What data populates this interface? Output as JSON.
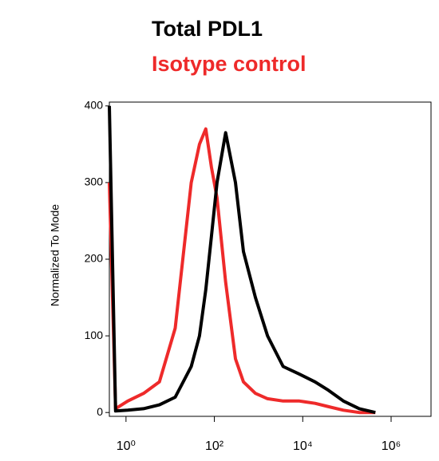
{
  "chart_data": {
    "type": "line",
    "y_label": "Normalized To Mode",
    "x": [
      0.42,
      0.58,
      1.1,
      2.5,
      5.7,
      13,
      30,
      46,
      64,
      86,
      115,
      180,
      300,
      455,
      850,
      1600,
      3600,
      8400,
      19000,
      36000,
      83000,
      190000,
      440000
    ],
    "series": [
      {
        "name": "Total PDL1",
        "color": "#000000",
        "values": [
          400,
          2,
          3,
          5,
          10,
          20,
          60,
          100,
          160,
          230,
          300,
          365,
          300,
          210,
          150,
          100,
          60,
          50,
          40,
          30,
          15,
          5,
          0
        ]
      },
      {
        "name": "Isotype control",
        "color": "#ee2a2a",
        "values": [
          300,
          5,
          15,
          25,
          40,
          110,
          300,
          350,
          370,
          320,
          280,
          170,
          70,
          40,
          25,
          18,
          15,
          15,
          12,
          8,
          3,
          0,
          0
        ]
      }
    ],
    "xscale": "log",
    "xlim": [
      0.42,
      8000000
    ],
    "xticks": [
      {
        "value": 1,
        "label": "10⁰"
      },
      {
        "value": 100,
        "label": "10²"
      },
      {
        "value": 10000,
        "label": "10⁴"
      },
      {
        "value": 1000000,
        "label": "10⁶"
      }
    ],
    "ylim": [
      -5,
      405
    ],
    "yticks": [
      0,
      100,
      200,
      300,
      400
    ]
  }
}
